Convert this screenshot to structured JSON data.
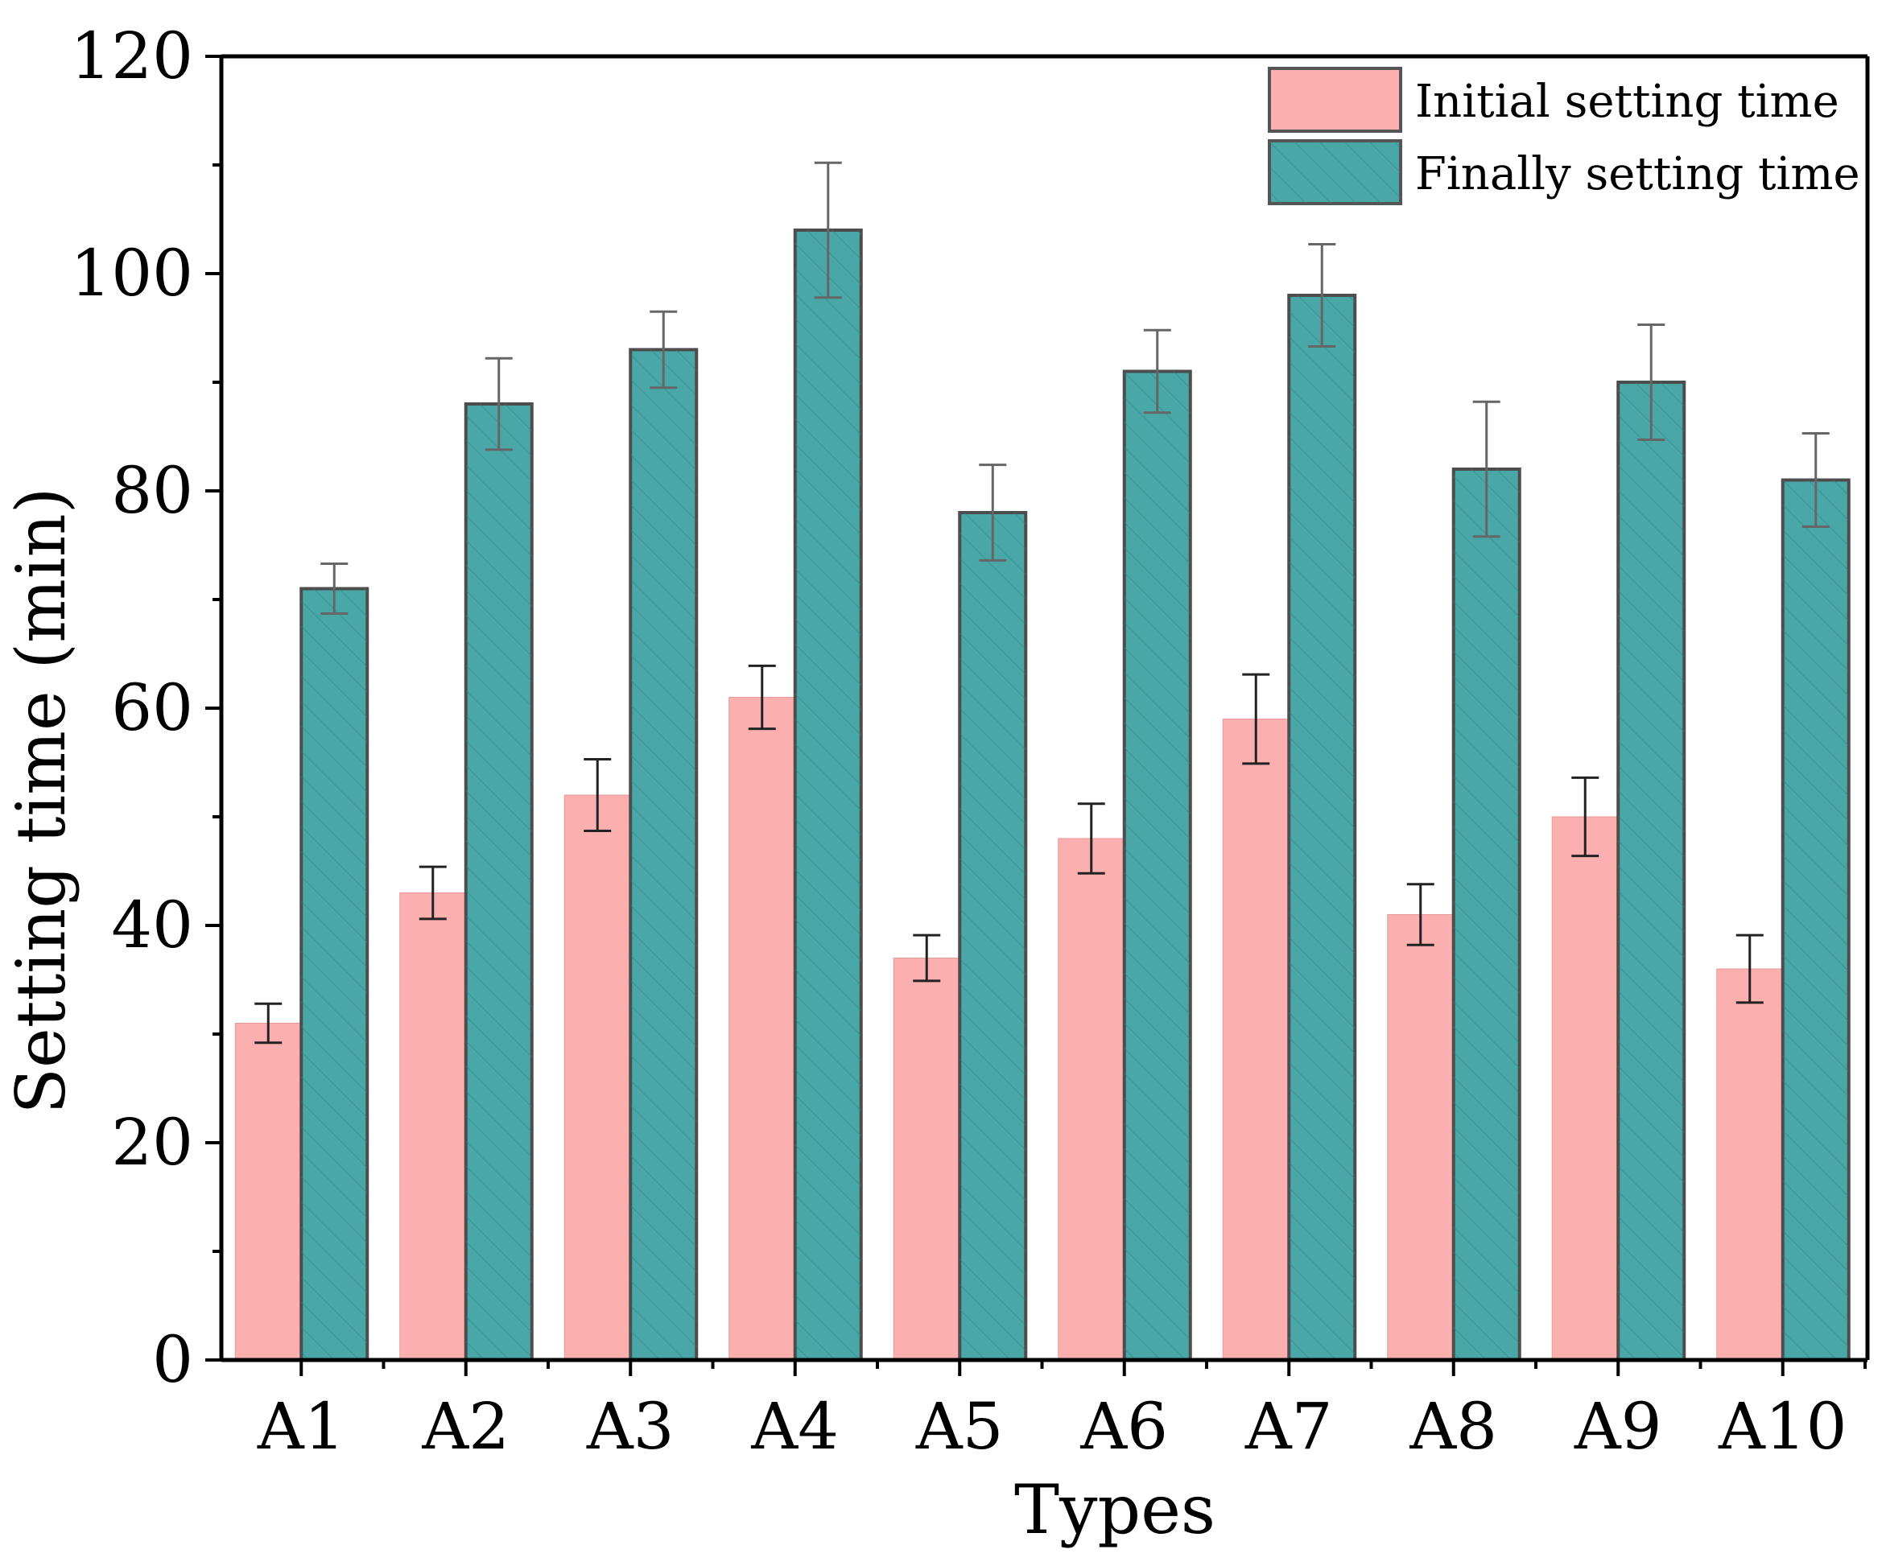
{
  "chart_data": {
    "type": "bar",
    "title": "",
    "xlabel": "Types",
    "ylabel": "Setting time (min)",
    "ylim": [
      0,
      120
    ],
    "yticks": [
      0,
      20,
      40,
      60,
      80,
      100,
      120
    ],
    "ytick_labels": [
      "0",
      "20",
      "40",
      "60",
      "80",
      "100",
      "120"
    ],
    "categories": [
      "A1",
      "A2",
      "A3",
      "A4",
      "A5",
      "A6",
      "A7",
      "A8",
      "A9",
      "A10"
    ],
    "series": [
      {
        "name": "Initial setting time",
        "color": "#fcafaf",
        "pattern": "solid",
        "values": [
          31,
          43,
          52,
          61,
          37,
          48,
          59,
          41,
          50,
          36
        ],
        "errors": [
          1.8,
          2.4,
          3.3,
          2.9,
          2.1,
          3.2,
          4.1,
          2.8,
          3.6,
          3.1
        ]
      },
      {
        "name": "Finally setting time",
        "color": "#4aa7a7",
        "pattern": "diagonal-hatch",
        "values": [
          71,
          88,
          93,
          104,
          78,
          91,
          98,
          82,
          90,
          81
        ],
        "errors": [
          2.3,
          4.2,
          3.5,
          6.2,
          4.4,
          3.8,
          4.7,
          6.2,
          5.3,
          4.3
        ]
      }
    ],
    "legend_position": "top-right",
    "grid": false
  }
}
